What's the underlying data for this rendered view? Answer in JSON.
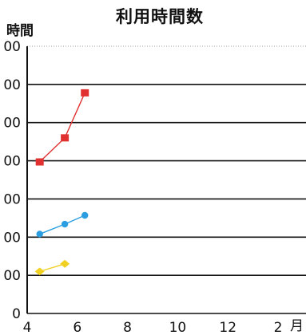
{
  "chart_data": {
    "type": "line",
    "title": "利用時間数",
    "ylabel": "時間",
    "xlabel": "月",
    "x_ticks": [
      "4",
      "6",
      "8",
      "10",
      "12",
      "2"
    ],
    "y_ticks": [
      "0",
      "00",
      "00",
      "00",
      "00",
      "00",
      "00",
      "00"
    ],
    "xlim": [
      4,
      14
    ],
    "ylim": [
      0,
      7
    ],
    "grid": true,
    "series": [
      {
        "color": "#e03030",
        "marker": "square",
        "x": [
          4.5,
          5.5,
          6.3
        ],
        "y": [
          3.97,
          4.6,
          5.78
        ]
      },
      {
        "color": "#2a9ee0",
        "marker": "circle",
        "x": [
          4.5,
          5.5,
          6.3
        ],
        "y": [
          2.08,
          2.34,
          2.57
        ]
      },
      {
        "color": "#f0d020",
        "marker": "diamond",
        "x": [
          4.5,
          5.5
        ],
        "y": [
          1.1,
          1.3
        ]
      }
    ]
  }
}
